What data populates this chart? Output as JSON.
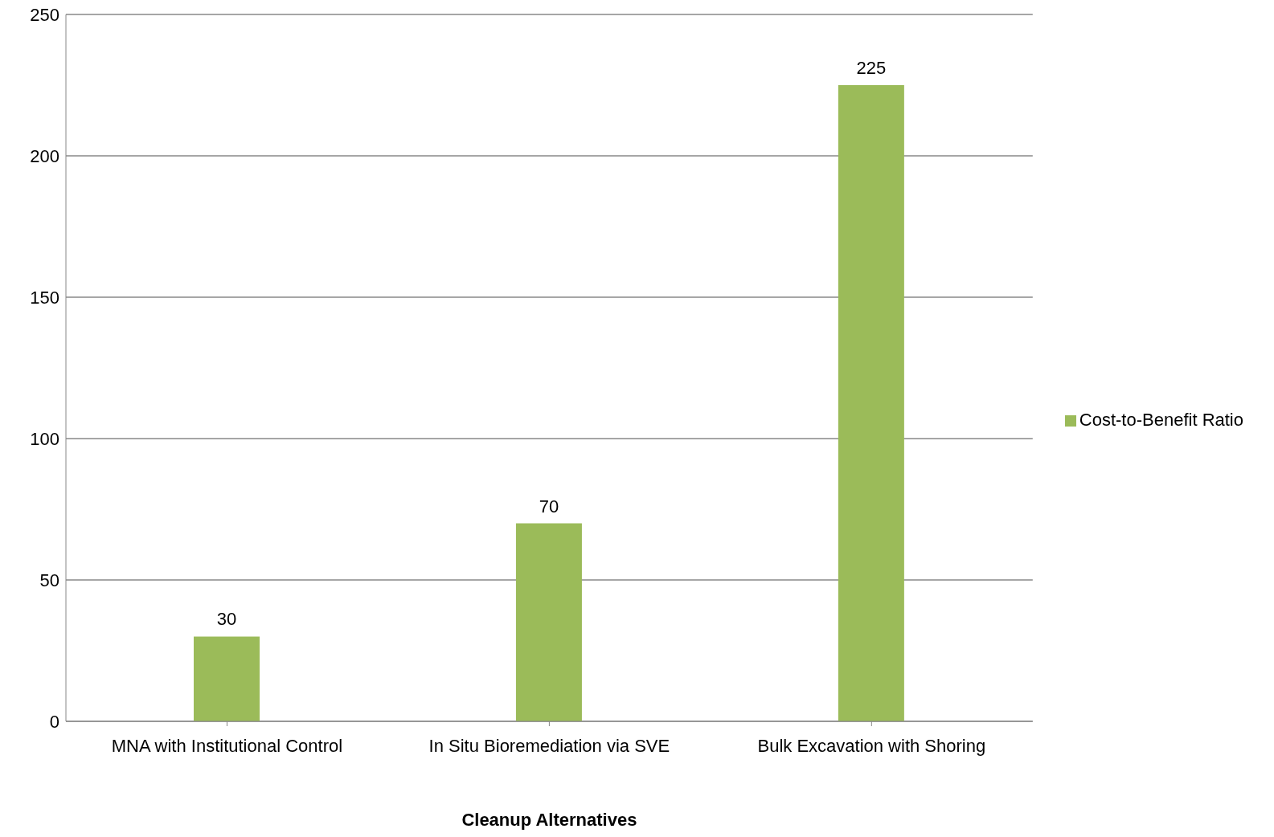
{
  "chart_data": {
    "type": "bar",
    "xlabel": "Cleanup Alternatives",
    "categories": [
      "MNA with Institutional Control",
      "In Situ Bioremediation via SVE",
      "Bulk Excavation with Shoring"
    ],
    "series": [
      {
        "name": "Cost-to-Benefit Ratio",
        "color": "#9bbb59",
        "values": [
          30,
          70,
          225
        ]
      }
    ],
    "ylim": [
      0,
      250
    ],
    "yticks": [
      0,
      50,
      100,
      150,
      200,
      250
    ],
    "grid": "y",
    "legend": "right",
    "data_labels": true
  }
}
